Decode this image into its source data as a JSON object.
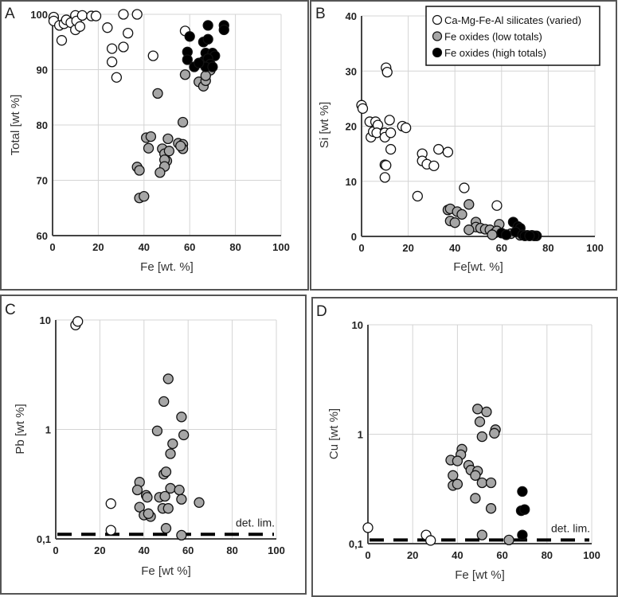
{
  "legend": {
    "items": [
      {
        "label": "Ca-Mg-Fe-Al silicates (varied)",
        "key": "white"
      },
      {
        "label": "Fe oxides (low totals)",
        "key": "gray"
      },
      {
        "label": "Fe oxides (high totals)",
        "key": "black"
      }
    ],
    "colors": {
      "white": "#ffffff",
      "gray": "#a6a6a6",
      "black": "#000000"
    }
  },
  "chart_data": [
    {
      "type": "scatter",
      "panel": "A",
      "xlabel": "Fe [wt. %]",
      "ylabel": "Total [wt %]",
      "xlim": [
        0,
        100
      ],
      "ylim": [
        60,
        100
      ],
      "yscale": "linear",
      "grid": true,
      "xticks": [
        "0",
        "20",
        "40",
        "60",
        "80",
        "100"
      ],
      "yticks": [
        "60",
        "70",
        "80",
        "90",
        "100"
      ],
      "series": [
        {
          "name": "Ca-Mg-Fe-Al silicates (varied)",
          "key": "white",
          "points": [
            [
              0.5,
              99.5
            ],
            [
              0.5,
              98.8
            ],
            [
              3,
              98
            ],
            [
              4,
              95.3
            ],
            [
              5,
              98.3
            ],
            [
              6,
              99
            ],
            [
              8,
              98.5
            ],
            [
              10,
              99.8
            ],
            [
              10,
              97.2
            ],
            [
              10.5,
              98.8
            ],
            [
              12,
              97.8
            ],
            [
              13,
              99.8
            ],
            [
              17,
              99.7
            ],
            [
              19,
              99.7
            ],
            [
              24,
              97.6
            ],
            [
              26,
              93.8
            ],
            [
              26,
              91.4
            ],
            [
              28,
              88.6
            ],
            [
              31,
              100
            ],
            [
              31,
              94.1
            ],
            [
              33,
              96.6
            ],
            [
              37,
              100
            ],
            [
              44,
              92.5
            ],
            [
              58,
              97
            ]
          ]
        },
        {
          "name": "Fe oxides (low totals)",
          "key": "gray",
          "points": [
            [
              46,
              85.7
            ],
            [
              57,
              80.5
            ],
            [
              41,
              77.7
            ],
            [
              43,
              77.9
            ],
            [
              42,
              75.8
            ],
            [
              50.5,
              77.5
            ],
            [
              55,
              76.7
            ],
            [
              57,
              76.5
            ],
            [
              57,
              75.7
            ],
            [
              56,
              76.2
            ],
            [
              48,
              75.7
            ],
            [
              49,
              74.8
            ],
            [
              50,
              73.5
            ],
            [
              49,
              73.7
            ],
            [
              49,
              72.5
            ],
            [
              51,
              75.3
            ],
            [
              47,
              71.4
            ],
            [
              37,
              72.4
            ],
            [
              38,
              71.8
            ],
            [
              38,
              66.8
            ],
            [
              40,
              67.1
            ],
            [
              58,
              89.1
            ],
            [
              64,
              87.8
            ],
            [
              66,
              87
            ],
            [
              67,
              88
            ],
            [
              69,
              89.9
            ],
            [
              67,
              88.9
            ]
          ]
        },
        {
          "name": "Fe oxides (high totals)",
          "key": "black",
          "points": [
            [
              60,
              96
            ],
            [
              59,
              93.2
            ],
            [
              59,
              91.8
            ],
            [
              62,
              90.5
            ],
            [
              68,
              98
            ],
            [
              75,
              98
            ],
            [
              75,
              97.2
            ],
            [
              66,
              95
            ],
            [
              68,
              95.5
            ],
            [
              67,
              93
            ],
            [
              70,
              93
            ],
            [
              71,
              92.5
            ],
            [
              66,
              91.5
            ],
            [
              68,
              92
            ],
            [
              69,
              91
            ],
            [
              67,
              90.5
            ],
            [
              70,
              90.5
            ],
            [
              64,
              91.2
            ]
          ]
        }
      ]
    },
    {
      "type": "scatter",
      "panel": "B",
      "xlabel": "Fe[wt. %]",
      "ylabel": "Si [wt %]",
      "xlim": [
        0,
        100
      ],
      "ylim": [
        0,
        40
      ],
      "yscale": "linear",
      "grid": true,
      "legend": "top-right",
      "xticks": [
        "0",
        "20",
        "40",
        "60",
        "80",
        "100"
      ],
      "yticks": [
        "0",
        "10",
        "20",
        "30",
        "40"
      ],
      "series": [
        {
          "name": "Ca-Mg-Fe-Al silicates (varied)",
          "key": "white",
          "points": [
            [
              0,
              23.8
            ],
            [
              0.5,
              23.2
            ],
            [
              3.5,
              20.8
            ],
            [
              4,
              18
            ],
            [
              5,
              19
            ],
            [
              6,
              20.8
            ],
            [
              7,
              20.2
            ],
            [
              6.5,
              18.8
            ],
            [
              10,
              18.8
            ],
            [
              10,
              18
            ],
            [
              10.5,
              30.6
            ],
            [
              11,
              29.8
            ],
            [
              12,
              21.1
            ],
            [
              12.5,
              18.8
            ],
            [
              12.5,
              15.8
            ],
            [
              10,
              13
            ],
            [
              10.5,
              12.9
            ],
            [
              10,
              10.7
            ],
            [
              17.5,
              20
            ],
            [
              19,
              19.7
            ],
            [
              26,
              15
            ],
            [
              26,
              13.7
            ],
            [
              28,
              13.1
            ],
            [
              31,
              12.8
            ],
            [
              33,
              15.8
            ],
            [
              37,
              15.3
            ],
            [
              24,
              7.3
            ],
            [
              44,
              8.8
            ],
            [
              58,
              5.6
            ]
          ]
        },
        {
          "name": "Fe oxides (low totals)",
          "key": "gray",
          "points": [
            [
              37,
              4.8
            ],
            [
              38,
              5
            ],
            [
              41,
              4.5
            ],
            [
              43,
              4
            ],
            [
              38,
              2.8
            ],
            [
              40,
              2.5
            ],
            [
              46,
              5.8
            ],
            [
              49,
              2.6
            ],
            [
              49,
              1.7
            ],
            [
              46,
              1.2
            ],
            [
              51,
              1.5
            ],
            [
              53,
              1.3
            ],
            [
              55,
              1.2
            ],
            [
              57,
              0.6
            ],
            [
              59,
              2.2
            ],
            [
              58,
              1
            ],
            [
              64,
              0.5
            ],
            [
              68,
              0.2
            ],
            [
              56,
              0.3
            ],
            [
              62,
              0.3
            ]
          ]
        },
        {
          "name": "Fe oxides (high totals)",
          "key": "black",
          "points": [
            [
              65,
              2.6
            ],
            [
              67,
              1.8
            ],
            [
              68,
              1.5
            ],
            [
              60,
              0.6
            ],
            [
              62,
              0.3
            ],
            [
              66,
              0.8
            ],
            [
              69,
              0.3
            ],
            [
              71,
              0.2
            ],
            [
              73,
              0.2
            ],
            [
              75,
              0.1
            ],
            [
              74,
              0.1
            ],
            [
              70,
              0.1
            ],
            [
              72,
              0.1
            ]
          ]
        }
      ]
    },
    {
      "type": "scatter",
      "panel": "C",
      "xlabel": "Fe [wt %]",
      "ylabel": "Pb [wt %]",
      "xlim": [
        0,
        100
      ],
      "ylim": [
        0.1,
        10
      ],
      "yscale": "log",
      "grid": true,
      "xticks": [
        "0",
        "20",
        "40",
        "60",
        "80",
        "100"
      ],
      "yticks": [
        "0,1",
        "1",
        "10"
      ],
      "detection_limit": {
        "label": "det. lim.",
        "value": 0.11
      },
      "series": [
        {
          "name": "Ca-Mg-Fe-Al silicates (varied)",
          "key": "white",
          "points": [
            [
              9,
              9.0
            ],
            [
              10,
              9.7
            ],
            [
              25,
              0.21
            ],
            [
              25,
              0.12
            ]
          ]
        },
        {
          "name": "Fe oxides (low totals)",
          "key": "gray",
          "points": [
            [
              51,
              2.9
            ],
            [
              49,
              1.8
            ],
            [
              57,
              1.3
            ],
            [
              46,
              0.97
            ],
            [
              58,
              0.89
            ],
            [
              53,
              0.74
            ],
            [
              52,
              0.6
            ],
            [
              49,
              0.39
            ],
            [
              50,
              0.41
            ],
            [
              38,
              0.33
            ],
            [
              37,
              0.28
            ],
            [
              41,
              0.25
            ],
            [
              41.5,
              0.24
            ],
            [
              47,
              0.24
            ],
            [
              49.5,
              0.245
            ],
            [
              52,
              0.29
            ],
            [
              56,
              0.28
            ],
            [
              57,
              0.23
            ],
            [
              65,
              0.215
            ],
            [
              38,
              0.195
            ],
            [
              40,
              0.165
            ],
            [
              43,
              0.16
            ],
            [
              48.5,
              0.19
            ],
            [
              51,
              0.19
            ],
            [
              42,
              0.17
            ],
            [
              50,
              0.125
            ],
            [
              57,
              0.108
            ]
          ]
        }
      ]
    },
    {
      "type": "scatter",
      "panel": "D",
      "xlabel": "Fe [wt %]",
      "ylabel": "Cu [wt %]",
      "xlim": [
        0,
        100
      ],
      "ylim": [
        0.1,
        10
      ],
      "yscale": "log",
      "grid": true,
      "xticks": [
        "0",
        "20",
        "40",
        "60",
        "80",
        "100"
      ],
      "yticks": [
        "0,1",
        "1",
        "10"
      ],
      "detection_limit": {
        "label": "det. lim.",
        "value": 0.108
      },
      "series": [
        {
          "name": "Ca-Mg-Fe-Al silicates (varied)",
          "key": "white",
          "points": [
            [
              0,
              0.14
            ],
            [
              26,
              0.12
            ],
            [
              28,
              0.107
            ]
          ]
        },
        {
          "name": "Fe oxides (low totals)",
          "key": "gray",
          "points": [
            [
              49,
              1.7
            ],
            [
              53,
              1.6
            ],
            [
              50,
              1.3
            ],
            [
              57,
              1.1
            ],
            [
              56.5,
              1.02
            ],
            [
              51,
              0.95
            ],
            [
              42,
              0.73
            ],
            [
              41.5,
              0.65
            ],
            [
              37,
              0.58
            ],
            [
              40,
              0.57
            ],
            [
              45,
              0.52
            ],
            [
              46,
              0.47
            ],
            [
              49,
              0.46
            ],
            [
              48,
              0.42
            ],
            [
              38,
              0.42
            ],
            [
              38,
              0.34
            ],
            [
              40,
              0.35
            ],
            [
              51,
              0.36
            ],
            [
              55,
              0.36
            ],
            [
              48,
              0.26
            ],
            [
              55,
              0.21
            ],
            [
              51,
              0.12
            ],
            [
              63,
              0.108
            ]
          ]
        },
        {
          "name": "Fe oxides (high totals)",
          "key": "black",
          "points": [
            [
              69,
              0.3
            ],
            [
              68.5,
              0.2
            ],
            [
              70,
              0.205
            ],
            [
              69,
              0.12
            ]
          ]
        }
      ]
    }
  ]
}
